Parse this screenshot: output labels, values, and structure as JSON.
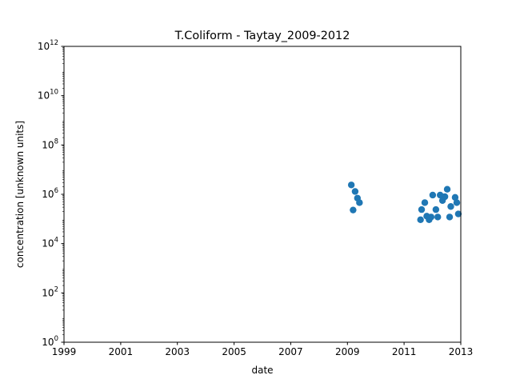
{
  "chart_data": {
    "type": "scatter",
    "title": "T.Coliform - Taytay_2009-2012",
    "xlabel": "date",
    "ylabel": "concentration [unknown units]",
    "xscale": "time",
    "yscale": "log",
    "xlim": [
      "1999-01-01",
      "2013-01-01"
    ],
    "ylim": [
      1,
      1000000000000
    ],
    "xticks": [
      {
        "date": "1999-01-01",
        "label": "1999"
      },
      {
        "date": "2001-01-01",
        "label": "2001"
      },
      {
        "date": "2003-01-01",
        "label": "2003"
      },
      {
        "date": "2005-01-01",
        "label": "2005"
      },
      {
        "date": "2007-01-01",
        "label": "2007"
      },
      {
        "date": "2009-01-01",
        "label": "2009"
      },
      {
        "date": "2011-01-01",
        "label": "2011"
      },
      {
        "date": "2013-01-01",
        "label": "2013"
      }
    ],
    "yticks": [
      {
        "value": 1,
        "base": "10",
        "exp": "0"
      },
      {
        "value": 100,
        "base": "10",
        "exp": "2"
      },
      {
        "value": 10000,
        "base": "10",
        "exp": "4"
      },
      {
        "value": 1000000,
        "base": "10",
        "exp": "6"
      },
      {
        "value": 100000000,
        "base": "10",
        "exp": "8"
      },
      {
        "value": 10000000000,
        "base": "10",
        "exp": "10"
      },
      {
        "value": 1000000000000,
        "base": "10",
        "exp": "12"
      }
    ],
    "grid": false,
    "legend": false,
    "marker_color": "#1f77b4",
    "points": [
      {
        "x": "2009-02-20",
        "y": 2400000
      },
      {
        "x": "2009-03-15",
        "y": 230000
      },
      {
        "x": "2009-04-10",
        "y": 1300000
      },
      {
        "x": "2009-05-10",
        "y": 700000
      },
      {
        "x": "2009-06-05",
        "y": 460000
      },
      {
        "x": "2011-08-01",
        "y": 93000
      },
      {
        "x": "2011-08-15",
        "y": 240000
      },
      {
        "x": "2011-09-25",
        "y": 460000
      },
      {
        "x": "2011-10-20",
        "y": 130000
      },
      {
        "x": "2011-11-20",
        "y": 93000
      },
      {
        "x": "2011-12-15",
        "y": 120000
      },
      {
        "x": "2012-01-05",
        "y": 930000
      },
      {
        "x": "2012-02-15",
        "y": 240000
      },
      {
        "x": "2012-03-10",
        "y": 120000
      },
      {
        "x": "2012-04-10",
        "y": 930000
      },
      {
        "x": "2012-05-10",
        "y": 560000
      },
      {
        "x": "2012-06-10",
        "y": 800000
      },
      {
        "x": "2012-07-10",
        "y": 1600000
      },
      {
        "x": "2012-08-10",
        "y": 120000
      },
      {
        "x": "2012-08-25",
        "y": 320000
      },
      {
        "x": "2012-10-20",
        "y": 750000
      },
      {
        "x": "2012-11-10",
        "y": 460000
      },
      {
        "x": "2012-11-30",
        "y": 160000
      }
    ]
  }
}
